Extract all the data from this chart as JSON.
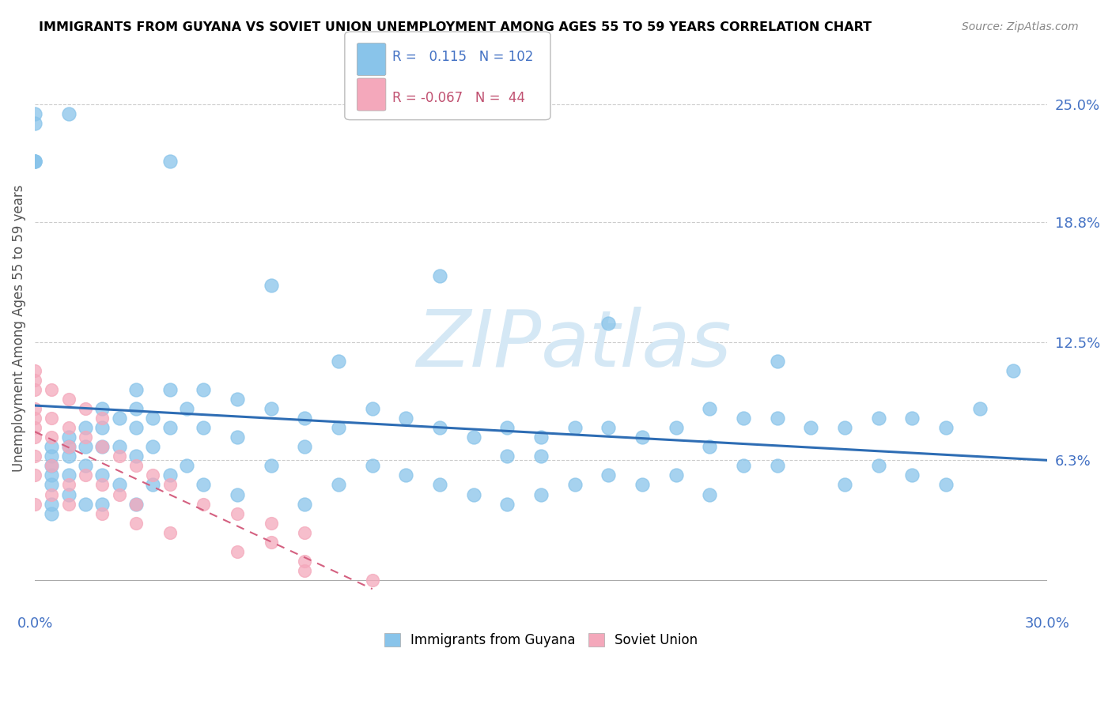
{
  "title": "IMMIGRANTS FROM GUYANA VS SOVIET UNION UNEMPLOYMENT AMONG AGES 55 TO 59 YEARS CORRELATION CHART",
  "source": "Source: ZipAtlas.com",
  "ylabel": "Unemployment Among Ages 55 to 59 years",
  "xmin": 0.0,
  "xmax": 0.3,
  "ymin": -0.015,
  "ymax": 0.28,
  "guyana_R": 0.115,
  "guyana_N": 102,
  "soviet_R": -0.067,
  "soviet_N": 44,
  "guyana_color": "#89c4ea",
  "soviet_color": "#f4a8bb",
  "guyana_line_color": "#2e6db4",
  "soviet_line_color": "#d46080",
  "yticks": [
    0.0,
    0.063,
    0.125,
    0.188,
    0.25
  ],
  "yticklabels": [
    "",
    "6.3%",
    "12.5%",
    "18.8%",
    "25.0%"
  ],
  "watermark_color": "#d5e8f5",
  "guyana_x": [
    0.005,
    0.005,
    0.005,
    0.005,
    0.005,
    0.005,
    0.005,
    0.01,
    0.01,
    0.01,
    0.01,
    0.01,
    0.015,
    0.015,
    0.015,
    0.015,
    0.02,
    0.02,
    0.02,
    0.02,
    0.02,
    0.025,
    0.025,
    0.025,
    0.03,
    0.03,
    0.03,
    0.03,
    0.035,
    0.035,
    0.035,
    0.04,
    0.04,
    0.04,
    0.045,
    0.045,
    0.05,
    0.05,
    0.05,
    0.06,
    0.06,
    0.06,
    0.07,
    0.07,
    0.08,
    0.08,
    0.08,
    0.09,
    0.09,
    0.1,
    0.1,
    0.11,
    0.11,
    0.12,
    0.12,
    0.13,
    0.13,
    0.14,
    0.14,
    0.14,
    0.15,
    0.15,
    0.16,
    0.16,
    0.17,
    0.17,
    0.18,
    0.18,
    0.19,
    0.19,
    0.2,
    0.2,
    0.2,
    0.21,
    0.21,
    0.22,
    0.22,
    0.23,
    0.24,
    0.24,
    0.25,
    0.25,
    0.26,
    0.26,
    0.27,
    0.27,
    0.28,
    0.29,
    0.01,
    0.04,
    0.07,
    0.12,
    0.17,
    0.0,
    0.0,
    0.0,
    0.0,
    0.0,
    0.03,
    0.09,
    0.15,
    0.22
  ],
  "guyana_y": [
    0.07,
    0.065,
    0.06,
    0.055,
    0.05,
    0.04,
    0.035,
    0.075,
    0.07,
    0.065,
    0.055,
    0.045,
    0.08,
    0.07,
    0.06,
    0.04,
    0.09,
    0.08,
    0.07,
    0.055,
    0.04,
    0.085,
    0.07,
    0.05,
    0.09,
    0.08,
    0.065,
    0.04,
    0.085,
    0.07,
    0.05,
    0.1,
    0.08,
    0.055,
    0.09,
    0.06,
    0.1,
    0.08,
    0.05,
    0.095,
    0.075,
    0.045,
    0.09,
    0.06,
    0.085,
    0.07,
    0.04,
    0.08,
    0.05,
    0.09,
    0.06,
    0.085,
    0.055,
    0.08,
    0.05,
    0.075,
    0.045,
    0.08,
    0.065,
    0.04,
    0.075,
    0.045,
    0.08,
    0.05,
    0.08,
    0.055,
    0.075,
    0.05,
    0.08,
    0.055,
    0.09,
    0.07,
    0.045,
    0.085,
    0.06,
    0.085,
    0.06,
    0.08,
    0.08,
    0.05,
    0.085,
    0.06,
    0.085,
    0.055,
    0.08,
    0.05,
    0.09,
    0.11,
    0.245,
    0.22,
    0.155,
    0.16,
    0.135,
    0.22,
    0.22,
    0.22,
    0.24,
    0.245,
    0.1,
    0.115,
    0.065,
    0.115
  ],
  "soviet_x": [
    0.0,
    0.0,
    0.0,
    0.0,
    0.0,
    0.0,
    0.0,
    0.005,
    0.005,
    0.005,
    0.01,
    0.01,
    0.01,
    0.015,
    0.015,
    0.02,
    0.02,
    0.025,
    0.025,
    0.03,
    0.03,
    0.035,
    0.04,
    0.05,
    0.06,
    0.07,
    0.07,
    0.08,
    0.08,
    0.005,
    0.01,
    0.015,
    0.02,
    0.0,
    0.0,
    0.0,
    0.005,
    0.01,
    0.02,
    0.03,
    0.04,
    0.06,
    0.08,
    0.1
  ],
  "soviet_y": [
    0.09,
    0.085,
    0.08,
    0.075,
    0.065,
    0.055,
    0.04,
    0.085,
    0.075,
    0.06,
    0.08,
    0.07,
    0.05,
    0.075,
    0.055,
    0.07,
    0.05,
    0.065,
    0.045,
    0.06,
    0.04,
    0.055,
    0.05,
    0.04,
    0.035,
    0.03,
    0.02,
    0.025,
    0.01,
    0.1,
    0.095,
    0.09,
    0.085,
    0.11,
    0.105,
    0.1,
    0.045,
    0.04,
    0.035,
    0.03,
    0.025,
    0.015,
    0.005,
    0.0
  ]
}
